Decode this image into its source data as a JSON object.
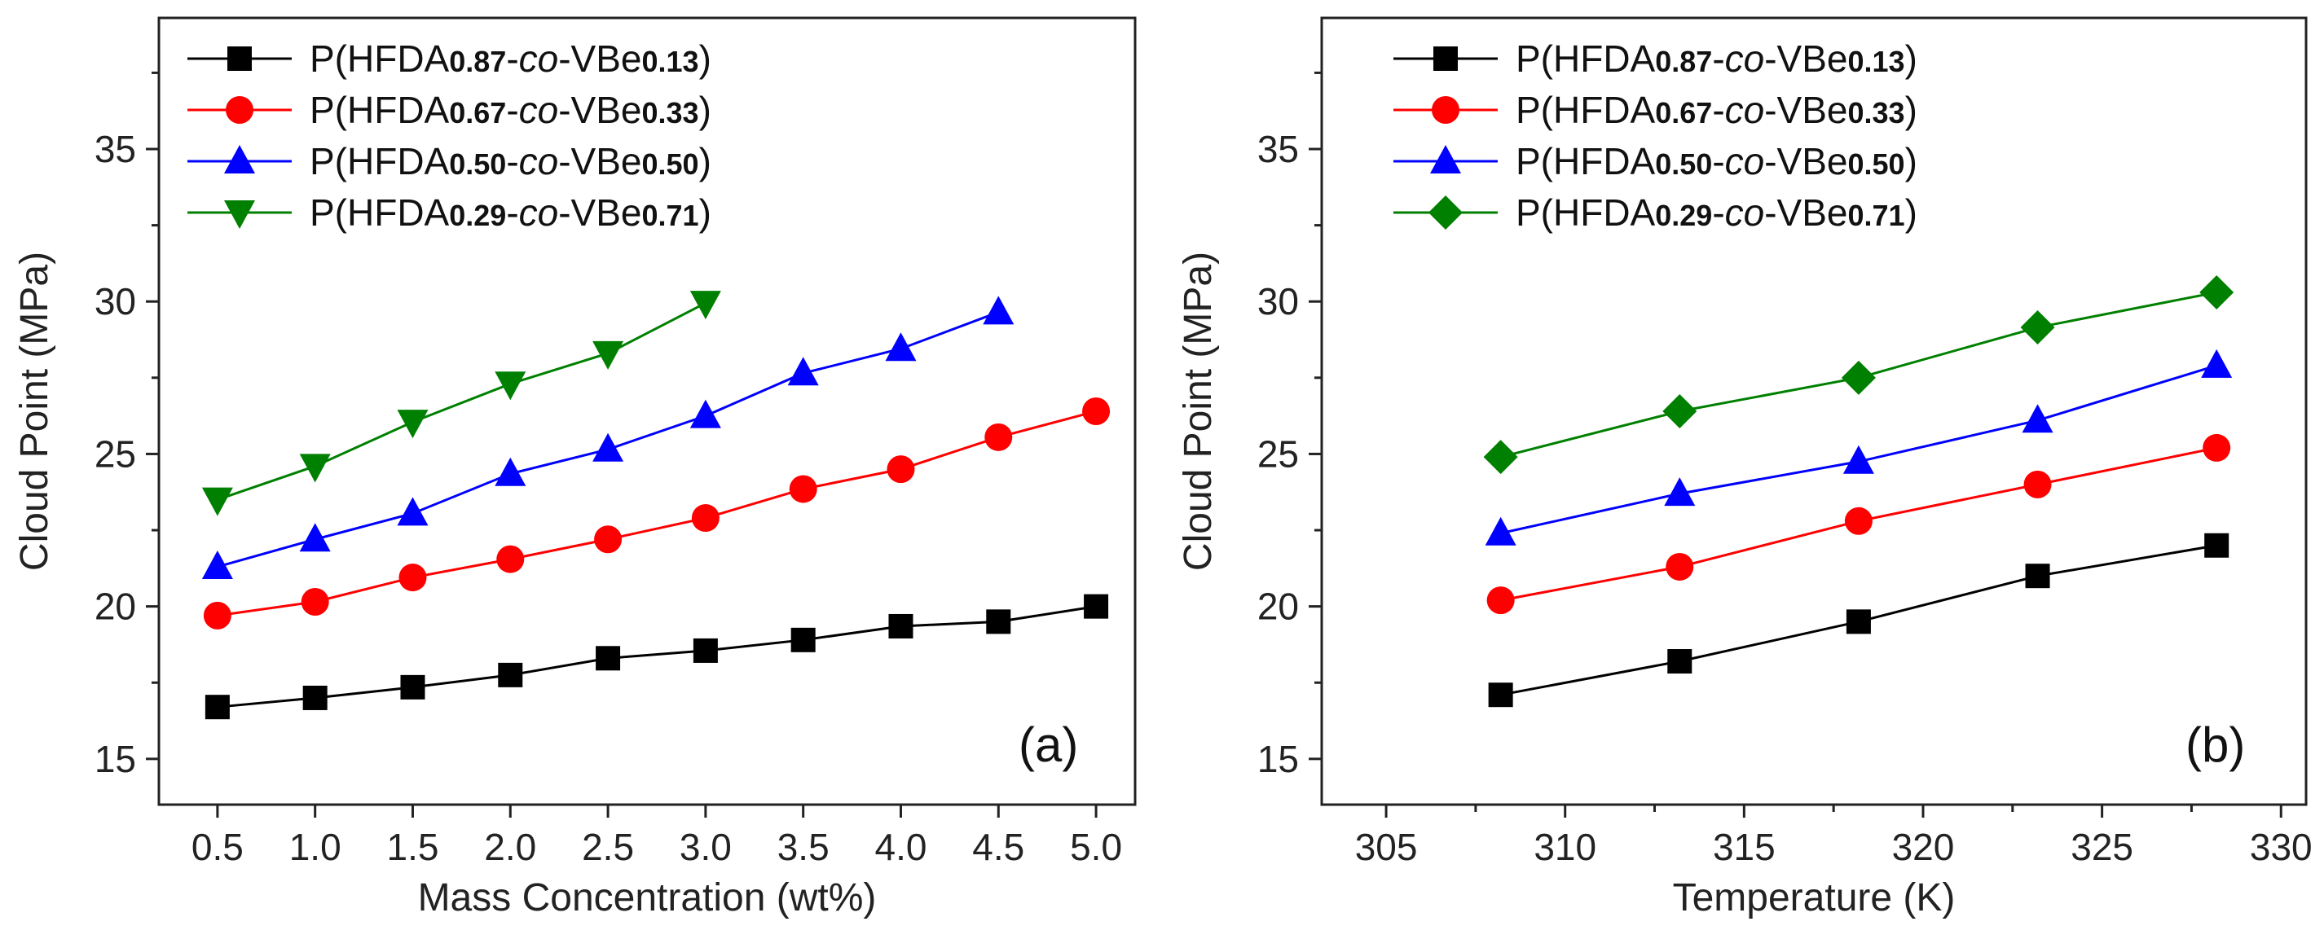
{
  "chart_data": [
    {
      "type": "line",
      "panel_label": "(a)",
      "title": "",
      "xlabel": "Mass Concentration (wt%)",
      "ylabel": "Cloud Point (MPa)",
      "xlim": [
        0.2,
        5.2
      ],
      "ylim": [
        13.5,
        39.3
      ],
      "xticks": [
        0.5,
        1.0,
        1.5,
        2.0,
        2.5,
        3.0,
        3.5,
        4.0,
        4.5,
        5.0
      ],
      "xtick_labels": [
        "0.5",
        "1.0",
        "1.5",
        "2.0",
        "2.5",
        "3.0",
        "3.5",
        "4.0",
        "4.5",
        "5.0"
      ],
      "yticks": [
        15,
        20,
        25,
        30,
        35
      ],
      "ytick_labels": [
        "15",
        "20",
        "25",
        "30",
        "35"
      ],
      "grid": false,
      "legend_position": "top-left",
      "series": [
        {
          "name": "P(HFDA0.87-co-VBe0.13)",
          "legend": {
            "pre": "P(HFDA",
            "s1": "0.87",
            "mid": "-",
            "it": "co",
            "post": "-VBe",
            "s2": "0.13",
            "end": ")"
          },
          "color": "#000000",
          "marker": "square",
          "x": [
            0.5,
            1.0,
            1.5,
            2.0,
            2.5,
            3.0,
            3.5,
            4.0,
            4.5,
            5.0
          ],
          "values": [
            16.7,
            17.0,
            17.35,
            17.75,
            18.3,
            18.55,
            18.9,
            19.35,
            19.5,
            20.0
          ]
        },
        {
          "name": "P(HFDA0.67-co-VBe0.33)",
          "legend": {
            "pre": "P(HFDA",
            "s1": "0.67",
            "mid": "-",
            "it": "co",
            "post": "-VBe",
            "s2": "0.33",
            "end": ")"
          },
          "color": "#ff0000",
          "marker": "circle",
          "x": [
            0.5,
            1.0,
            1.5,
            2.0,
            2.5,
            3.0,
            3.5,
            4.0,
            4.5,
            5.0
          ],
          "values": [
            19.7,
            20.15,
            20.95,
            21.55,
            22.2,
            22.9,
            23.85,
            24.5,
            25.55,
            26.4
          ]
        },
        {
          "name": "P(HFDA0.50-co-VBe0.50)",
          "legend": {
            "pre": "P(HFDA",
            "s1": "0.50",
            "mid": "-",
            "it": "co",
            "post": "-VBe",
            "s2": "0.50",
            "end": ")"
          },
          "color": "#0000ff",
          "marker": "triangle-up",
          "x": [
            0.5,
            1.0,
            1.5,
            2.0,
            2.5,
            3.0,
            3.5,
            4.0,
            4.5
          ],
          "values": [
            21.3,
            22.2,
            23.05,
            24.35,
            25.15,
            26.25,
            27.65,
            28.45,
            29.65
          ]
        },
        {
          "name": "P(HFDA0.29-co-VBe0.71)",
          "legend": {
            "pre": "P(HFDA",
            "s1": "0.29",
            "mid": "-",
            "it": "co",
            "post": "-VBe",
            "s2": "0.71",
            "end": ")"
          },
          "color": "#008000",
          "marker": "triangle-down",
          "x": [
            0.5,
            1.0,
            1.5,
            2.0,
            2.5,
            3.0
          ],
          "values": [
            23.5,
            24.6,
            26.05,
            27.3,
            28.3,
            29.95
          ]
        }
      ]
    },
    {
      "type": "line",
      "panel_label": "(b)",
      "title": "",
      "xlabel": "Temperature (K)",
      "ylabel": "Cloud Point (MPa)",
      "xlim": [
        303.2,
        330.7
      ],
      "ylim": [
        13.5,
        39.3
      ],
      "xticks": [
        305,
        310,
        315,
        320,
        325,
        330
      ],
      "xtick_labels": [
        "305",
        "310",
        "315",
        "320",
        "325",
        "330"
      ],
      "yticks": [
        15,
        20,
        25,
        30,
        35
      ],
      "ytick_labels": [
        "15",
        "20",
        "25",
        "30",
        "35"
      ],
      "grid": false,
      "legend_position": "top-left",
      "series": [
        {
          "name": "P(HFDA0.87-co-VBe0.13)",
          "legend": {
            "pre": "P(HFDA",
            "s1": "0.87",
            "mid": "-",
            "it": "co",
            "post": "-VBe",
            "s2": "0.13",
            "end": ")"
          },
          "color": "#000000",
          "marker": "square",
          "x": [
            308.2,
            313.2,
            318.2,
            323.2,
            328.2
          ],
          "values": [
            17.1,
            18.2,
            19.5,
            21.0,
            22.0
          ]
        },
        {
          "name": "P(HFDA0.67-co-VBe0.33)",
          "legend": {
            "pre": "P(HFDA",
            "s1": "0.67",
            "mid": "-",
            "it": "co",
            "post": "-VBe",
            "s2": "0.33",
            "end": ")"
          },
          "color": "#ff0000",
          "marker": "circle",
          "x": [
            308.2,
            313.2,
            318.2,
            323.2,
            328.2
          ],
          "values": [
            20.2,
            21.3,
            22.8,
            24.0,
            25.2
          ]
        },
        {
          "name": "P(HFDA0.50-co-VBe0.50)",
          "legend": {
            "pre": "P(HFDA",
            "s1": "0.50",
            "mid": "-",
            "it": "co",
            "post": "-VBe",
            "s2": "0.50",
            "end": ")"
          },
          "color": "#0000ff",
          "marker": "triangle-up",
          "x": [
            308.2,
            313.2,
            318.2,
            323.2,
            328.2
          ],
          "values": [
            22.4,
            23.7,
            24.75,
            26.1,
            27.9
          ]
        },
        {
          "name": "P(HFDA0.29-co-VBe0.71)",
          "legend": {
            "pre": "P(HFDA",
            "s1": "0.29",
            "mid": "-",
            "it": "co",
            "post": "-VBe",
            "s2": "0.71",
            "end": ")"
          },
          "color": "#008000",
          "marker": "diamond",
          "x": [
            308.2,
            313.2,
            318.2,
            323.2,
            328.2
          ],
          "values": [
            24.9,
            26.4,
            27.5,
            29.15,
            30.3
          ]
        }
      ]
    }
  ]
}
